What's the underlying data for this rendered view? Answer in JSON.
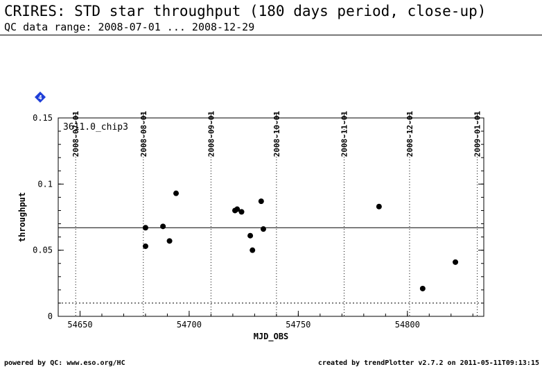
{
  "header": {
    "title": "CRIRES: STD star throughput (180 days period, close-up)",
    "subtitle": "QC data range: 2008-07-01 ... 2008-12-29"
  },
  "footer": {
    "left": "powered by QC: www.eso.org/HC",
    "right": "created by trendPlotter v2.7.2 on 2011-05-11T09:13:15"
  },
  "chart_data": {
    "type": "scatter",
    "panel_label": "3611.0_chip3",
    "marker_badge": "4",
    "xlabel": "MJD_OBS",
    "ylabel": "throughput",
    "xlim": [
      54640,
      54835
    ],
    "ylim": [
      0,
      0.15
    ],
    "x_ticks": [
      54650,
      54700,
      54750,
      54800
    ],
    "y_ticks": [
      0,
      0.05,
      0.1,
      0.15
    ],
    "y_tick_labels": [
      "0",
      "0.05",
      "0.1",
      "0.15"
    ],
    "date_ticks": [
      {
        "label": "2008-07-01",
        "mjd": 54648
      },
      {
        "label": "2008-08-01",
        "mjd": 54679
      },
      {
        "label": "2008-09-01",
        "mjd": 54710
      },
      {
        "label": "2008-10-01",
        "mjd": 54740
      },
      {
        "label": "2008-11-01",
        "mjd": 54771
      },
      {
        "label": "2008-12-01",
        "mjd": 54801
      },
      {
        "label": "2009-01-01",
        "mjd": 54832
      }
    ],
    "reference_line": 0.067,
    "lower_limit_line": 0.01,
    "points": [
      {
        "x": 54680,
        "y": 0.067
      },
      {
        "x": 54680,
        "y": 0.053
      },
      {
        "x": 54688,
        "y": 0.068
      },
      {
        "x": 54691,
        "y": 0.057
      },
      {
        "x": 54694,
        "y": 0.093
      },
      {
        "x": 54721,
        "y": 0.08
      },
      {
        "x": 54722,
        "y": 0.081
      },
      {
        "x": 54724,
        "y": 0.079
      },
      {
        "x": 54728,
        "y": 0.061
      },
      {
        "x": 54729,
        "y": 0.05
      },
      {
        "x": 54733,
        "y": 0.087
      },
      {
        "x": 54734,
        "y": 0.066
      },
      {
        "x": 54787,
        "y": 0.083
      },
      {
        "x": 54807,
        "y": 0.021
      },
      {
        "x": 54822,
        "y": 0.041
      }
    ],
    "colors": {
      "marker": "#000000",
      "badge": "#1f3fd8"
    }
  }
}
